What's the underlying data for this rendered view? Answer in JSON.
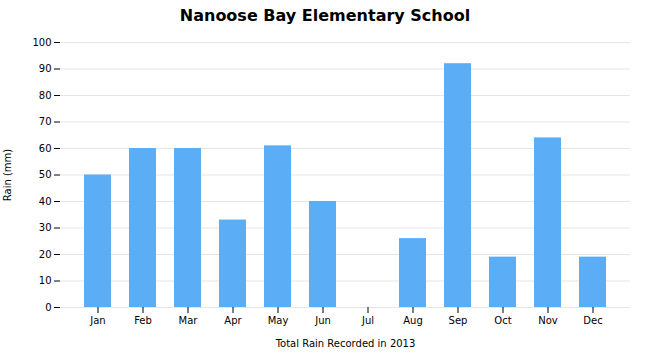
{
  "chart_data": {
    "type": "bar",
    "title": "Nanoose Bay Elementary School",
    "xlabel": "Total Rain Recorded in 2013",
    "ylabel": "Rain (mm)",
    "categories": [
      "Jan",
      "Feb",
      "Mar",
      "Apr",
      "May",
      "Jun",
      "Jul",
      "Aug",
      "Sep",
      "Oct",
      "Nov",
      "Dec"
    ],
    "values": [
      50,
      60,
      60,
      33,
      61,
      40,
      0,
      26,
      92,
      19,
      64,
      19
    ],
    "color": "#5BAEF5",
    "ylim": [
      0,
      100
    ],
    "yticks": [
      0,
      10,
      20,
      30,
      40,
      50,
      60,
      70,
      80,
      90,
      100
    ],
    "grid": true
  }
}
